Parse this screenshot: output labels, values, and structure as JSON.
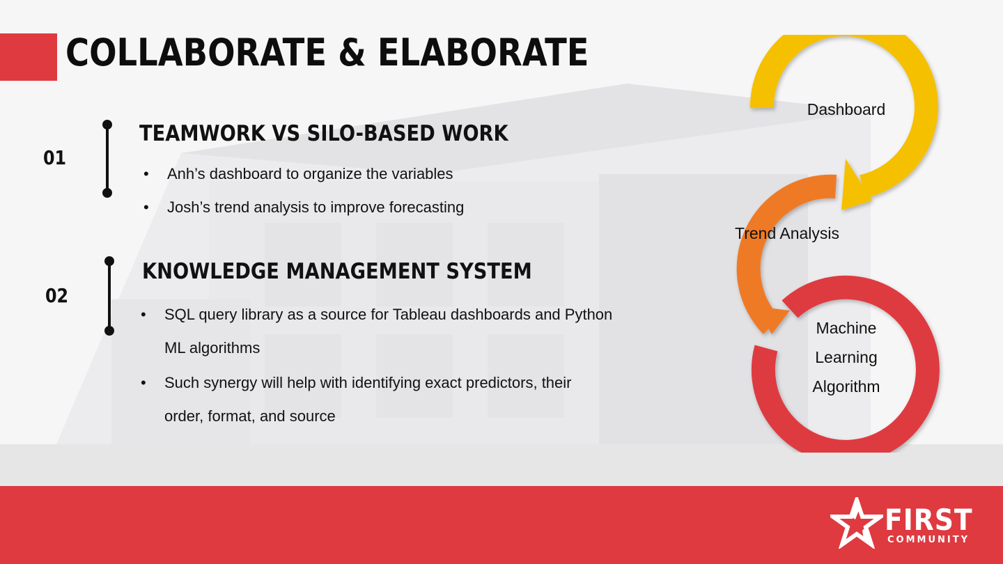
{
  "slide": {
    "title": "COLLABORATE & ELABORATE"
  },
  "sections": [
    {
      "number": "01",
      "heading": "TEAMWORK VS SILO-BASED WORK",
      "bullets": [
        "Anh’s dashboard to organize the variables",
        "Josh’s trend analysis to improve forecasting"
      ]
    },
    {
      "number": "02",
      "heading": "KNOWLEDGE MANAGEMENT SYSTEM",
      "bullets": [
        "SQL query library as a source for Tableau dashboards and Python ML algorithms",
        "Such synergy will help with identifying exact predictors, their order, format, and source"
      ]
    }
  ],
  "cycle": {
    "steps": [
      {
        "label": "Dashboard",
        "color": "#f5c000"
      },
      {
        "label": "Trend Analysis",
        "color": "#ef7a28"
      },
      {
        "label": "Machine Learning Algorithm",
        "color": "#de3a40"
      }
    ]
  },
  "logo": {
    "name": "FIRST",
    "subtitle": "COMMUNITY"
  },
  "colors": {
    "accent_red": "#de3a40",
    "yellow": "#f5c000",
    "orange": "#ef7a28",
    "band_gray": "#e6e6e7"
  },
  "icons": {
    "bullet": "•",
    "logo_mark": "star-mark-icon"
  }
}
